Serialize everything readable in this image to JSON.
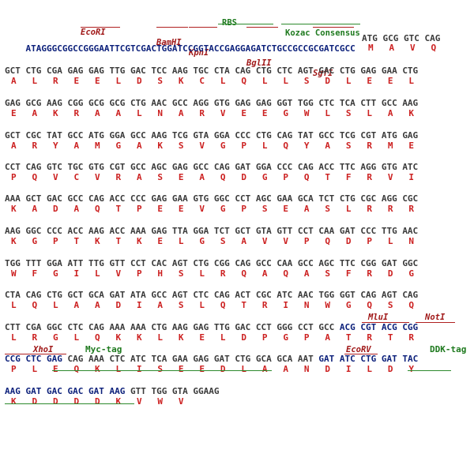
{
  "header_line": "ATAGGGCGGCCGGGAATTCGTCGACTGGATCCGGTACCGAGGAGATCTGCCGCCGCGATCGCC",
  "header_codons": "ATG GCG GTC CAG",
  "header_aas": "M   A   V   Q",
  "features": {
    "ecori": "EcoRI",
    "bamhi": "BamHI",
    "kpni": "KpnI",
    "rbs": "RBS",
    "bglii": "BglII",
    "kozac": "Kozac Consensus",
    "sgfi": "SgfI",
    "mlui": "MluI",
    "noti": "NotI",
    "xhoi": "XhoI",
    "myc": "Myc-tag",
    "ecorv": "EcoRV",
    "ddk": "DDK-tag"
  },
  "rows": [
    {
      "nt": "GCT CTG CGA GAG GAG TTG GAC TCC AAG TGC CTA CAG CTG CTC AGT GAC CTG GAG GAA CTG",
      "aa": "A   L   R   E   E   L   D   S   K   C   L   Q   L   L   S   D   L   E   E   L"
    },
    {
      "nt": "GAG GCG AAG CGG GCG GCG CTG AAC GCC AGG GTG GAG GAG GGT TGG CTC TCA CTT GCC AAG",
      "aa": "E   A   K   R   A   A   L   N   A   R   V   E   E   G   W   L   S   L   A   K"
    },
    {
      "nt": "GCT CGC TAT GCC ATG GGA GCC AAG TCG GTA GGA CCC CTG CAG TAT GCC TCG CGT ATG GAG",
      "aa": "A   R   Y   A   M   G   A   K   S   V   G   P   L   Q   Y   A   S   R   M   E"
    },
    {
      "nt": "CCT CAG GTC TGC GTG CGT GCC AGC GAG GCC CAG GAT GGA CCC CAG ACC TTC AGG GTG ATC",
      "aa": "P   Q   V   C   V   R   A   S   E   A   Q   D   G   P   Q   T   F   R   V   I"
    },
    {
      "nt": "AAA GCT GAC GCC CAG ACC CCC GAG GAA GTG GGC CCT AGC GAA GCA TCT CTG CGC AGG CGC",
      "aa": "K   A   D   A   Q   T   P   E   E   V   G   P   S   E   A   S   L   R   R   R"
    },
    {
      "nt": "AAG GGC CCC ACC AAG ACC AAA GAG TTA GGA TCT GCT GTA GTT CCT CAA GAT CCC TTG AAC",
      "aa": "K   G   P   T   K   T   K   E   L   G   S   A   V   V   P   Q   D   P   L   N"
    },
    {
      "nt": "TGG TTT GGA ATT TTG GTT CCT CAC AGT CTG CGG CAG GCC CAA GCC AGC TTC CGG GAT GGC",
      "aa": "W   F   G   I   L   V   P   H   S   L   R   Q   A   Q   A   S   F   R   D   G"
    },
    {
      "nt": "CTA CAG CTG GCT GCA GAT ATA GCC AGT CTC CAG ACT CGC ATC AAC TGG GGT CAG AGT CAG",
      "aa": "L   Q   L   A   A   D   I   A   S   L   Q   T   R   I   N   W   G   Q   S   Q"
    }
  ],
  "row9_nt_black": "CTT CGA GGC CTC CAG AAA AAA CTG AAG GAG TTG GAC CCT GGG CCT GCC ",
  "row9_nt_blue": "ACG CGT ACG CGG",
  "row9_aa": "L   R   G   L   Q   K   K   L   K   E   L   D   P   G   P   A   T   R   T   R",
  "row10_nt_blue1": "CCG CTC GAG ",
  "row10_nt_black": "CAG AAA CTC ATC TCA GAA GAG GAT CTG GCA GCA AAT ",
  "row10_nt_blue2": "GAT ATC CTG GAT TAC",
  "row10_aa": "P   L   E   Q   K   L   I   S   E   E   D   L   A   A   N   D   I   L   D   Y",
  "row11_nt_blue": "AAG GAT GAC GAC GAT AAG ",
  "row11_nt_black": "GTT TGG GTA GGAAG",
  "row11_aa": "K   D   D   D   D   K   V   W   V"
}
